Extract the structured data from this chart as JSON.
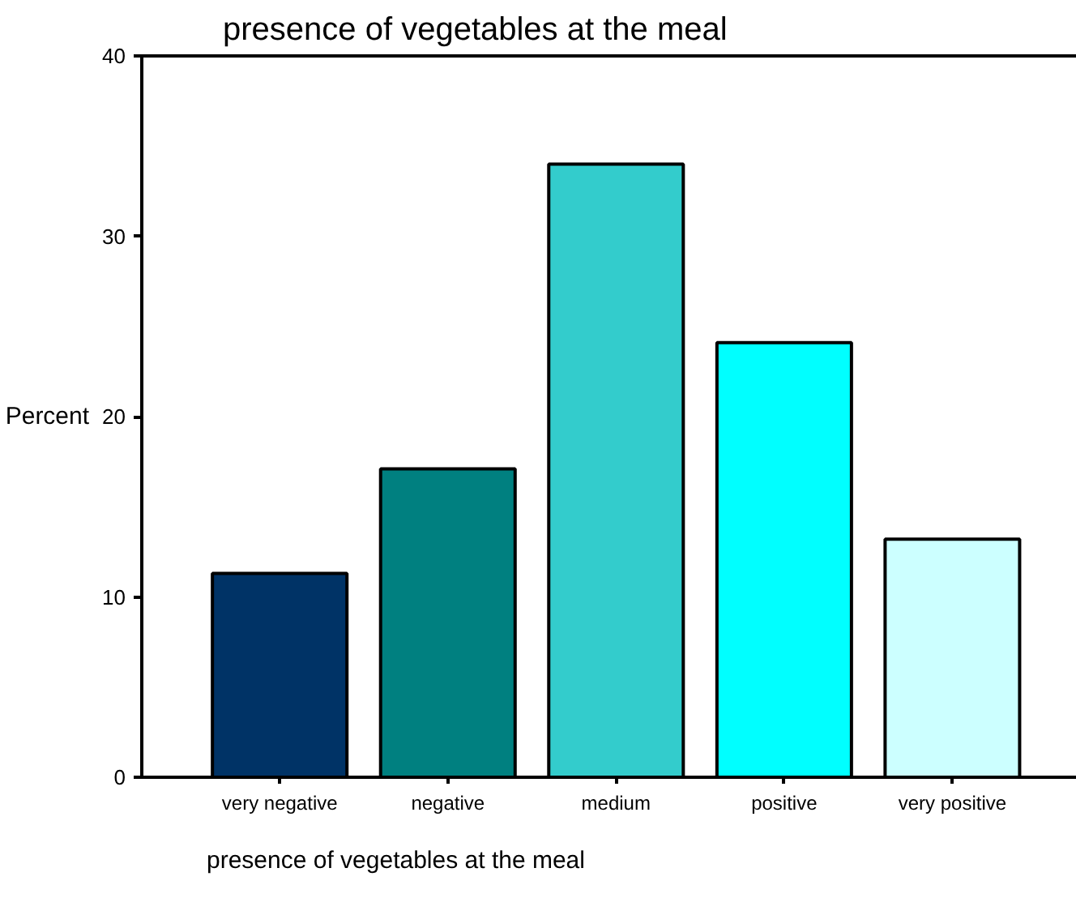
{
  "chart_data": {
    "type": "bar",
    "title": "presence of vegetables at the meal",
    "xlabel": "presence of vegetables at the meal",
    "ylabel": "Percent",
    "categories": [
      "very negative",
      "negative",
      "medium",
      "positive",
      "very positive"
    ],
    "values": [
      11.3,
      17.1,
      34.0,
      24.1,
      13.2
    ],
    "colors": [
      "#003366",
      "#008080",
      "#33cccc",
      "#00ffff",
      "#ccffff"
    ],
    "ylim": [
      0,
      40
    ],
    "yticks": [
      0,
      10,
      20,
      30,
      40
    ],
    "grid": false
  }
}
